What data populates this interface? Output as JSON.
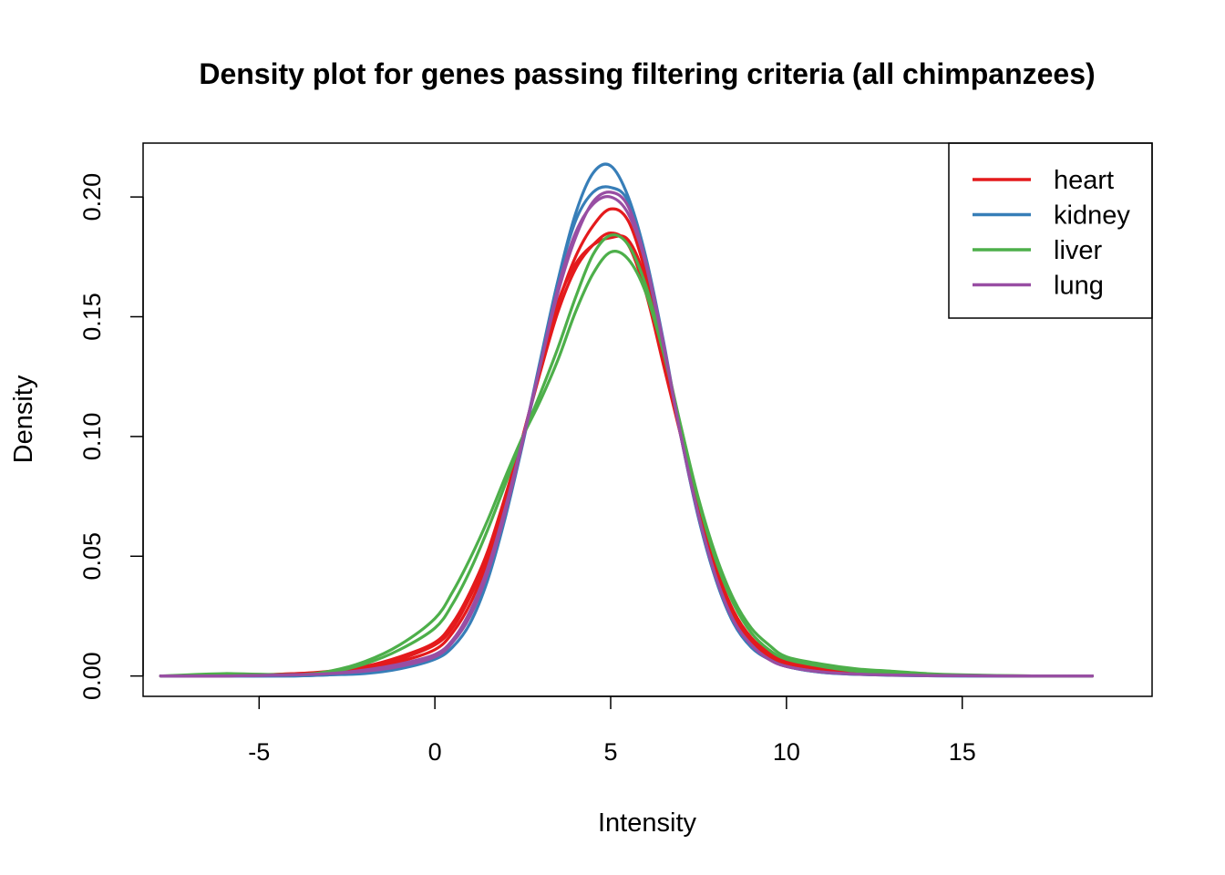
{
  "chart_data": {
    "type": "line",
    "title": "Density plot for genes passing filtering criteria (all chimpanzees)",
    "xlabel": "Intensity",
    "ylabel": "Density",
    "xlim": [
      -8.3,
      20.4
    ],
    "ylim": [
      -0.0085,
      0.2225
    ],
    "xticks": [
      -5,
      0,
      5,
      10,
      15
    ],
    "yticks": [
      0.0,
      0.05,
      0.1,
      0.15,
      0.2
    ],
    "xtick_labels": [
      "-5",
      "0",
      "5",
      "10",
      "15"
    ],
    "ytick_labels": [
      "0.00",
      "0.05",
      "0.10",
      "0.15",
      "0.20"
    ],
    "grid": false,
    "legend": {
      "position": "top-right",
      "entries": [
        "heart",
        "kidney",
        "liver",
        "lung"
      ]
    },
    "colors": {
      "heart": "#E41A1C",
      "kidney": "#377EB8",
      "liver": "#4DAF4A",
      "lung": "#984EA3"
    },
    "x": [
      -7.8,
      -6.0,
      -4.0,
      -3.0,
      -2.0,
      -1.0,
      0.0,
      0.5,
      1.0,
      1.5,
      2.0,
      2.5,
      3.0,
      3.5,
      4.0,
      4.5,
      5.0,
      5.5,
      6.0,
      6.5,
      7.0,
      7.5,
      8.0,
      8.5,
      9.0,
      9.5,
      10.0,
      11.0,
      12.0,
      13.0,
      14.0,
      15.0,
      17.0,
      18.7
    ],
    "series": [
      {
        "name": "heart",
        "values": [
          0.0,
          0.0,
          0.001,
          0.002,
          0.004,
          0.008,
          0.014,
          0.022,
          0.035,
          0.052,
          0.075,
          0.1,
          0.127,
          0.152,
          0.17,
          0.18,
          0.185,
          0.18,
          0.16,
          0.13,
          0.1,
          0.07,
          0.045,
          0.027,
          0.016,
          0.01,
          0.006,
          0.003,
          0.0015,
          0.001,
          0.0005,
          0.0002,
          0.0,
          0.0
        ]
      },
      {
        "name": "heart",
        "values": [
          0.0,
          0.0,
          0.0005,
          0.001,
          0.003,
          0.006,
          0.011,
          0.018,
          0.03,
          0.048,
          0.072,
          0.1,
          0.128,
          0.155,
          0.175,
          0.188,
          0.195,
          0.19,
          0.168,
          0.135,
          0.1,
          0.068,
          0.042,
          0.025,
          0.014,
          0.008,
          0.005,
          0.002,
          0.001,
          0.0005,
          0.0002,
          0.0001,
          0.0,
          0.0
        ]
      },
      {
        "name": "heart",
        "values": [
          0.0,
          0.0,
          0.001,
          0.0015,
          0.003,
          0.007,
          0.013,
          0.02,
          0.033,
          0.05,
          0.074,
          0.1,
          0.128,
          0.156,
          0.172,
          0.18,
          0.183,
          0.182,
          0.165,
          0.133,
          0.1,
          0.069,
          0.044,
          0.026,
          0.015,
          0.009,
          0.005,
          0.0025,
          0.0012,
          0.0006,
          0.0003,
          0.0001,
          0.0,
          0.0
        ]
      },
      {
        "name": "kidney",
        "values": [
          0.0,
          0.0,
          0.0,
          0.0005,
          0.001,
          0.003,
          0.007,
          0.012,
          0.022,
          0.04,
          0.066,
          0.097,
          0.13,
          0.165,
          0.193,
          0.21,
          0.213,
          0.2,
          0.175,
          0.14,
          0.1,
          0.066,
          0.04,
          0.022,
          0.012,
          0.007,
          0.004,
          0.0015,
          0.0007,
          0.0003,
          0.0001,
          0.0,
          0.0,
          0.0
        ]
      },
      {
        "name": "kidney",
        "values": [
          0.0,
          0.0,
          0.0,
          0.0005,
          0.0015,
          0.004,
          0.008,
          0.014,
          0.025,
          0.043,
          0.068,
          0.098,
          0.132,
          0.165,
          0.19,
          0.202,
          0.204,
          0.198,
          0.172,
          0.138,
          0.1,
          0.066,
          0.04,
          0.022,
          0.012,
          0.007,
          0.004,
          0.0015,
          0.0007,
          0.0003,
          0.0001,
          0.0,
          0.0,
          0.0
        ]
      },
      {
        "name": "liver",
        "values": [
          0.0,
          0.001,
          0.0005,
          0.002,
          0.006,
          0.013,
          0.024,
          0.035,
          0.049,
          0.065,
          0.083,
          0.1,
          0.115,
          0.132,
          0.152,
          0.168,
          0.177,
          0.174,
          0.16,
          0.135,
          0.104,
          0.074,
          0.05,
          0.032,
          0.02,
          0.013,
          0.008,
          0.005,
          0.003,
          0.002,
          0.001,
          0.0005,
          0.0,
          0.0
        ]
      },
      {
        "name": "liver",
        "values": [
          0.0,
          0.0005,
          0.0005,
          0.0015,
          0.005,
          0.011,
          0.02,
          0.03,
          0.044,
          0.061,
          0.08,
          0.1,
          0.118,
          0.137,
          0.158,
          0.176,
          0.184,
          0.18,
          0.163,
          0.136,
          0.104,
          0.073,
          0.048,
          0.03,
          0.018,
          0.011,
          0.007,
          0.004,
          0.002,
          0.0015,
          0.0007,
          0.0003,
          0.0,
          0.0
        ]
      },
      {
        "name": "lung",
        "values": [
          0.0,
          0.0,
          0.0005,
          0.001,
          0.002,
          0.004,
          0.008,
          0.014,
          0.025,
          0.043,
          0.068,
          0.098,
          0.13,
          0.162,
          0.185,
          0.197,
          0.2,
          0.193,
          0.172,
          0.138,
          0.1,
          0.067,
          0.041,
          0.023,
          0.013,
          0.007,
          0.004,
          0.0017,
          0.0008,
          0.0004,
          0.0002,
          0.0001,
          0.0,
          0.0
        ]
      },
      {
        "name": "lung",
        "values": [
          0.0,
          0.0,
          0.0005,
          0.001,
          0.0025,
          0.005,
          0.009,
          0.015,
          0.027,
          0.045,
          0.07,
          0.099,
          0.13,
          0.16,
          0.183,
          0.198,
          0.202,
          0.196,
          0.173,
          0.139,
          0.1,
          0.067,
          0.041,
          0.023,
          0.013,
          0.007,
          0.004,
          0.0017,
          0.0008,
          0.0004,
          0.0002,
          0.0001,
          0.0,
          0.0
        ]
      }
    ]
  }
}
